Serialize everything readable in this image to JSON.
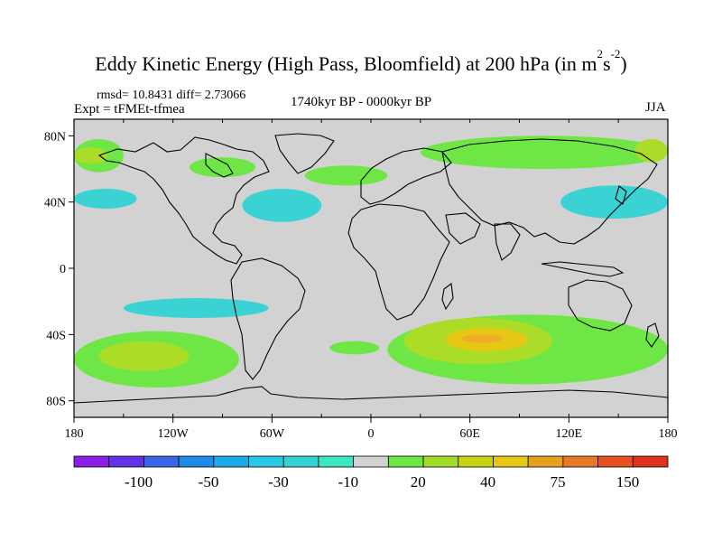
{
  "title": {
    "main": "Eddy Kinetic Energy (High Pass, Bloomfield) at 200 hPa (in m",
    "sup1": "2",
    "mid": "s",
    "sup2": "-2",
    "close": ")"
  },
  "stats": "rmsd= 10.8431 diff= 2.73066",
  "experiment": "Expt = tFMEt-tfmea",
  "period": "1740kyr BP - 0000kyr BP",
  "season": "JJA",
  "colors": {
    "land_background": "#d2d2d2",
    "cyan": "#3ad2d2",
    "green": "#6ee646",
    "lime": "#aadc28",
    "yellow": "#e6c814",
    "orange": "#eeac2a"
  },
  "chart_data": {
    "type": "heatmap",
    "projection": "cylindrical-equidistant",
    "x_ticks": [
      "180",
      "120W",
      "60W",
      "0",
      "60E",
      "120E",
      "180"
    ],
    "y_ticks": [
      "80N",
      "40N",
      "0",
      "40S",
      "80S"
    ],
    "xlim": [
      -180,
      180
    ],
    "ylim": [
      -90,
      90
    ],
    "colorbar": {
      "labels": [
        "-100",
        "-50",
        "-30",
        "-10",
        "20",
        "40",
        "75",
        "150"
      ],
      "colors": [
        "#8c1ee6",
        "#6432e6",
        "#3c64e6",
        "#1e8ce6",
        "#1eaae6",
        "#28c8e6",
        "#32d2d2",
        "#3ce6be",
        "#d2d2d2",
        "#6ee646",
        "#a0dc28",
        "#c8d214",
        "#e6c814",
        "#e6a01e",
        "#e67828",
        "#e6501e",
        "#dc321e"
      ]
    },
    "anomaly_regions": [
      {
        "id": "npac-green",
        "level": "green",
        "lon": [
          -180,
          -150
        ],
        "lat": [
          58,
          78
        ]
      },
      {
        "id": "npac-lime",
        "level": "lime",
        "lon": [
          -180,
          -160
        ],
        "lat": [
          63,
          73
        ]
      },
      {
        "id": "npac-cyan",
        "level": "cyan",
        "lon": [
          -180,
          -142
        ],
        "lat": [
          36,
          48
        ]
      },
      {
        "id": "hudson-green",
        "level": "green",
        "lon": [
          -110,
          -70
        ],
        "lat": [
          55,
          67
        ]
      },
      {
        "id": "natl-cyan",
        "level": "cyan",
        "lon": [
          -78,
          -30
        ],
        "lat": [
          28,
          48
        ]
      },
      {
        "id": "europe-green",
        "level": "green",
        "lon": [
          -40,
          10
        ],
        "lat": [
          50,
          62
        ]
      },
      {
        "id": "siberia-green",
        "level": "green",
        "lon": [
          30,
          180
        ],
        "lat": [
          60,
          80
        ]
      },
      {
        "id": "kamchatka-lime",
        "level": "lime",
        "lon": [
          160,
          180
        ],
        "lat": [
          64,
          78
        ]
      },
      {
        "id": "wpac-cyan",
        "level": "cyan",
        "lon": [
          115,
          180
        ],
        "lat": [
          30,
          50
        ]
      },
      {
        "id": "spac-cyan",
        "level": "cyan",
        "lon": [
          -150,
          -62
        ],
        "lat": [
          -30,
          -18
        ]
      },
      {
        "id": "spac-green",
        "level": "green",
        "lon": [
          -180,
          -80
        ],
        "lat": [
          -72,
          -38
        ]
      },
      {
        "id": "spac-lime",
        "level": "lime",
        "lon": [
          -165,
          -110
        ],
        "lat": [
          -62,
          -44
        ]
      },
      {
        "id": "satl-green-small",
        "level": "green",
        "lon": [
          -25,
          5
        ],
        "lat": [
          -52,
          -44
        ]
      },
      {
        "id": "sio-green",
        "level": "green",
        "lon": [
          10,
          180
        ],
        "lat": [
          -70,
          -28
        ]
      },
      {
        "id": "sio-lime",
        "level": "lime",
        "lon": [
          20,
          110
        ],
        "lat": [
          -58,
          -30
        ]
      },
      {
        "id": "sio-yellow",
        "level": "yellow",
        "lon": [
          45,
          95
        ],
        "lat": [
          -50,
          -36
        ]
      },
      {
        "id": "sio-orange",
        "level": "orange",
        "lon": [
          55,
          80
        ],
        "lat": [
          -45,
          -40
        ]
      }
    ]
  }
}
